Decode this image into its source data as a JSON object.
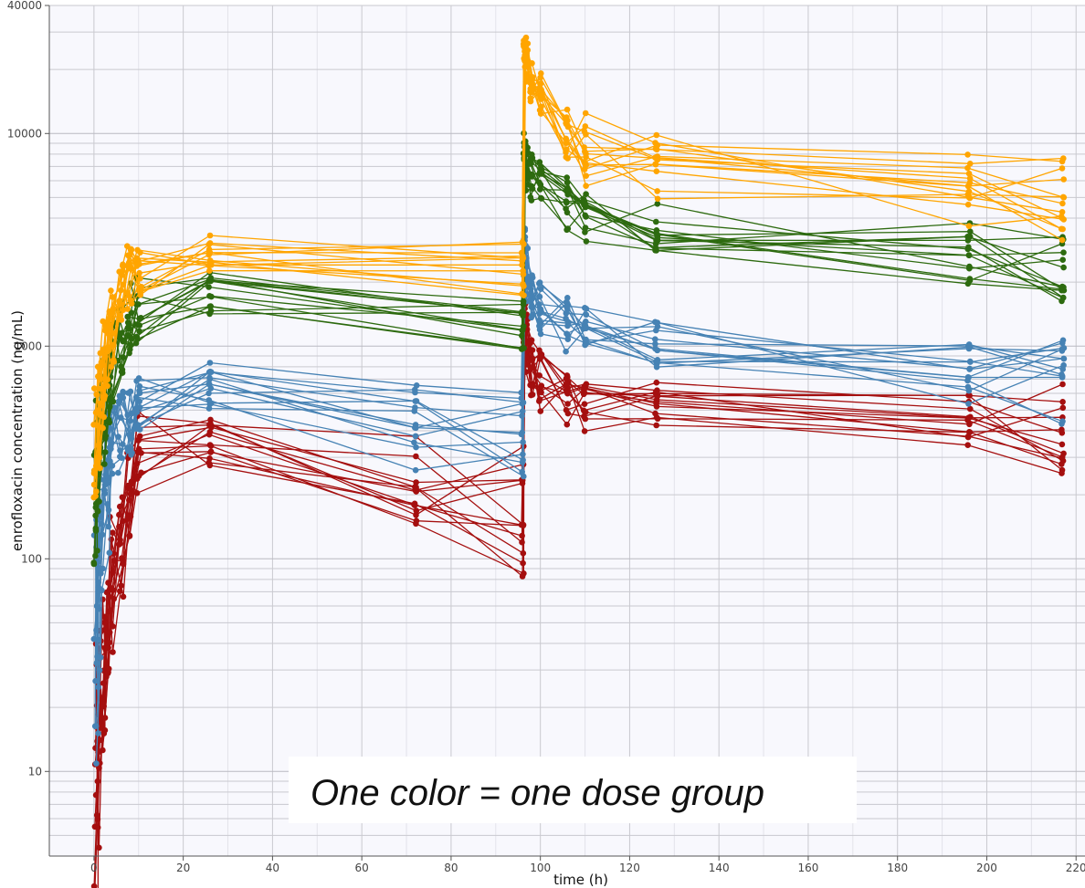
{
  "chart_data": {
    "type": "line",
    "xlabel": "time (h)",
    "ylabel": "enrofloxacin concentration (ng/mL)",
    "x_scale": "linear",
    "y_scale": "log",
    "xlim": [
      -10,
      222
    ],
    "ylim": [
      4,
      40000
    ],
    "x_ticks": [
      0,
      20,
      40,
      60,
      80,
      100,
      120,
      140,
      160,
      180,
      200,
      220
    ],
    "y_ticks": [
      10,
      100,
      1000,
      10000,
      40000
    ],
    "y_tick_labels": [
      "10",
      "100",
      "1000",
      "10000",
      "40000"
    ],
    "grid": true,
    "markers": true,
    "annotation": "One color = one dose group",
    "colors": {
      "background": "#f8f8fd",
      "grid": "#c9c9cf",
      "axis": "#444444"
    },
    "dose_groups": [
      {
        "color": "#a50f0f",
        "subjects": 14,
        "times": [
          0.5,
          1,
          2,
          3,
          4,
          6,
          8,
          10,
          26,
          72,
          96,
          96.5,
          97,
          98,
          100,
          106,
          110,
          126,
          196,
          217
        ],
        "profile": [
          7,
          14,
          26,
          48,
          72,
          120,
          190,
          300,
          340,
          240,
          160,
          1300,
          1050,
          820,
          680,
          600,
          560,
          520,
          460,
          400
        ],
        "spread": [
          0.55,
          0.45,
          0.4,
          0.35,
          0.3,
          0.25,
          0.22,
          0.2,
          0.12,
          0.22,
          0.28,
          0.12,
          0.14,
          0.15,
          0.15,
          0.13,
          0.12,
          0.11,
          0.13,
          0.2
        ]
      },
      {
        "color": "#4682b4",
        "subjects": 14,
        "times": [
          0.5,
          1,
          2,
          3,
          4,
          6,
          8,
          10,
          26,
          72,
          96,
          96.5,
          97,
          98,
          100,
          106,
          110,
          126,
          196,
          217
        ],
        "profile": [
          40,
          90,
          170,
          240,
          300,
          380,
          440,
          520,
          600,
          420,
          340,
          2800,
          2200,
          1700,
          1450,
          1250,
          1150,
          1000,
          720,
          700
        ],
        "spread": [
          0.5,
          0.4,
          0.35,
          0.3,
          0.25,
          0.2,
          0.18,
          0.16,
          0.12,
          0.18,
          0.22,
          0.1,
          0.12,
          0.12,
          0.12,
          0.12,
          0.12,
          0.12,
          0.15,
          0.18
        ]
      },
      {
        "color": "#2d6a0f",
        "subjects": 14,
        "times": [
          0.5,
          1,
          2,
          3,
          4,
          6,
          8,
          10,
          26,
          96,
          96.5,
          97,
          98,
          100,
          106,
          110,
          126,
          196,
          217
        ],
        "profile": [
          190,
          320,
          480,
          650,
          850,
          1100,
          1300,
          1500,
          1800,
          1200,
          8000,
          7000,
          6200,
          5700,
          4700,
          4200,
          3500,
          2600,
          2200
        ],
        "spread": [
          0.35,
          0.3,
          0.25,
          0.22,
          0.2,
          0.18,
          0.16,
          0.15,
          0.1,
          0.12,
          0.08,
          0.1,
          0.1,
          0.1,
          0.12,
          0.12,
          0.12,
          0.14,
          0.14
        ]
      },
      {
        "color": "#ffa500",
        "subjects": 14,
        "times": [
          0.5,
          1,
          2,
          3,
          4,
          6,
          8,
          10,
          26,
          96,
          96.5,
          97,
          98,
          100,
          106,
          110,
          126,
          196,
          217
        ],
        "profile": [
          350,
          520,
          750,
          1000,
          1300,
          1800,
          2100,
          2300,
          2800,
          2200,
          25000,
          22000,
          18000,
          15000,
          10000,
          8500,
          7500,
          6000,
          5000
        ],
        "spread": [
          0.3,
          0.25,
          0.22,
          0.2,
          0.18,
          0.16,
          0.14,
          0.12,
          0.08,
          0.14,
          0.1,
          0.1,
          0.1,
          0.1,
          0.12,
          0.15,
          0.15,
          0.18,
          0.18
        ]
      }
    ]
  }
}
